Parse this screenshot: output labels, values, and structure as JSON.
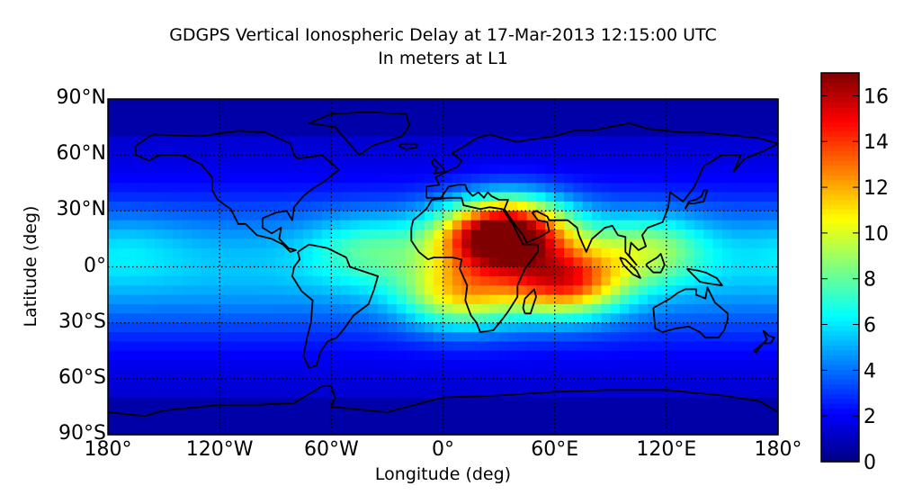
{
  "chart_data": {
    "type": "heatmap",
    "title": "GDGPS Vertical Ionospheric Delay at 17-Mar-2013 12:15:00 UTC",
    "subtitle": "In meters at L1",
    "xlabel": "Longitude (deg)",
    "ylabel": "Latitude (deg)",
    "xlim": [
      -180,
      180
    ],
    "ylim": [
      -90,
      90
    ],
    "x_ticks": [
      {
        "value": -180,
        "label": "180°"
      },
      {
        "value": -120,
        "label": "120°W"
      },
      {
        "value": -60,
        "label": "60°W"
      },
      {
        "value": 0,
        "label": "0°"
      },
      {
        "value": 60,
        "label": "60°E"
      },
      {
        "value": 120,
        "label": "120°E"
      },
      {
        "value": 180,
        "label": "180°"
      }
    ],
    "y_ticks": [
      {
        "value": 90,
        "label": "90°N"
      },
      {
        "value": 60,
        "label": "60°N"
      },
      {
        "value": 30,
        "label": "30°N"
      },
      {
        "value": 0,
        "label": "0°"
      },
      {
        "value": -30,
        "label": "30°S"
      },
      {
        "value": -60,
        "label": "60°S"
      },
      {
        "value": -90,
        "label": "90°S"
      }
    ],
    "grid": "dotted",
    "colorbar": {
      "range": [
        0,
        17
      ],
      "ticks": [
        0,
        2,
        4,
        6,
        8,
        10,
        12,
        14,
        16
      ],
      "colormap": [
        "#00007f",
        "#0000ff",
        "#007fff",
        "#00ffff",
        "#7fff7f",
        "#ffff00",
        "#ff7f00",
        "#ff0000",
        "#7f0000"
      ]
    },
    "delay_peaks": [
      {
        "lon": 25,
        "lat": 15,
        "value": 14.5
      },
      {
        "lon": 65,
        "lat": -8,
        "value": 15.2
      },
      {
        "lon": 40,
        "lat": 20,
        "value": 13.5
      },
      {
        "lon": 10,
        "lat": -15,
        "value": 12.0
      },
      {
        "lon": 110,
        "lat": 10,
        "value": 9.5
      },
      {
        "lon": -40,
        "lat": 10,
        "value": 8.0
      },
      {
        "lon": -170,
        "lat": 10,
        "value": 6.0
      }
    ]
  }
}
